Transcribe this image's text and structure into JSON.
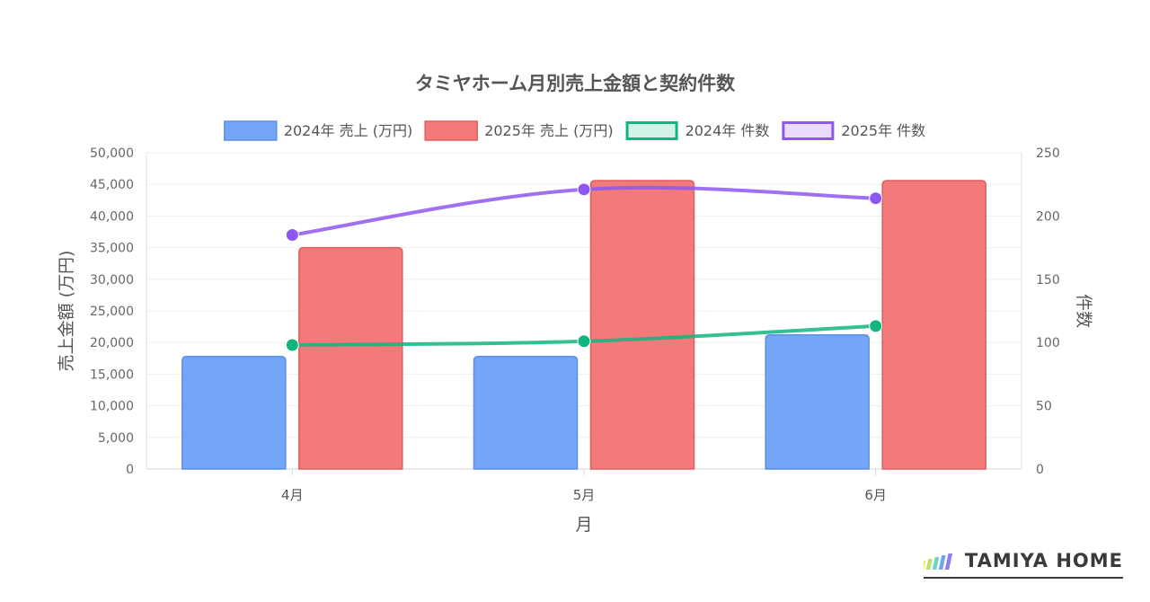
{
  "chart_data": {
    "type": "bar",
    "title": "タミヤホーム月別売上金額と契約件数",
    "xlabel": "月",
    "ylabel_left": "売上金額 (万円)",
    "ylabel_right": "件数",
    "categories": [
      "4月",
      "5月",
      "6月"
    ],
    "y_left": {
      "min": 0,
      "max": 50000,
      "ticks": [
        "0",
        "5,000",
        "10,000",
        "15,000",
        "20,000",
        "25,000",
        "30,000",
        "35,000",
        "40,000",
        "45,000",
        "50,000"
      ]
    },
    "y_right": {
      "min": 0,
      "max": 250,
      "ticks": [
        "0",
        "50",
        "100",
        "150",
        "200",
        "250"
      ]
    },
    "series": [
      {
        "name": "2024年 売上 (万円)",
        "type": "bar",
        "axis": "left",
        "values": [
          17800,
          17800,
          21200
        ],
        "color": "#75a5f7",
        "border": "#5b8fe8"
      },
      {
        "name": "2025年 売上 (万円)",
        "type": "bar",
        "axis": "left",
        "values": [
          35000,
          45600,
          45600
        ],
        "color": "#f27a7a",
        "border": "#e35d5d"
      },
      {
        "name": "2024年 件数",
        "type": "line",
        "axis": "right",
        "values": [
          98,
          101,
          113
        ],
        "color": "#13b57f",
        "fill": "#d3f3e6"
      },
      {
        "name": "2025年 件数",
        "type": "line",
        "axis": "right",
        "values": [
          185,
          221,
          214
        ],
        "color": "#8e57ef",
        "fill": "#e9dcfc"
      }
    ],
    "grid": true,
    "legend_position": "top"
  },
  "logo": {
    "text": "TAMIYA HOME",
    "bars": [
      "#f4e26a",
      "#b8e36e",
      "#6fd3c2",
      "#6ea7ef",
      "#8e7cf0"
    ]
  }
}
